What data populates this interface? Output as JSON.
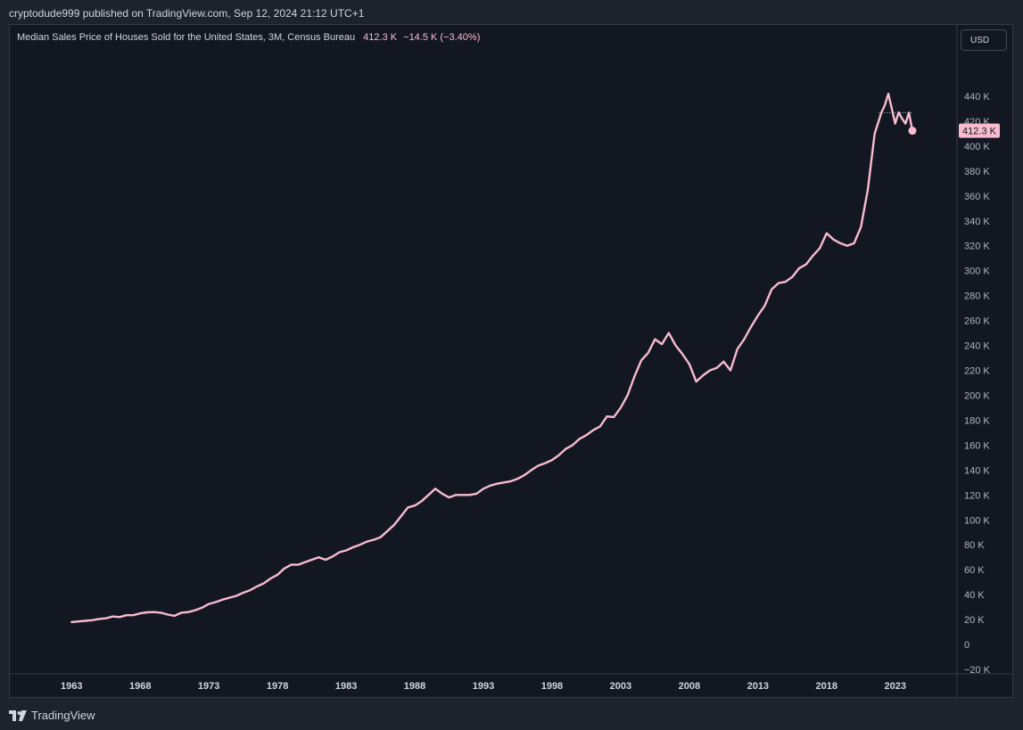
{
  "header": {
    "published_text": "cryptodude999 published on TradingView.com, Sep 12, 2024 21:12 UTC+1"
  },
  "legend": {
    "title": "Median Sales Price of Houses Sold for the United States, 3M, Census Bureau",
    "last_value": "412.3 K",
    "change": "−14.5 K (−3.40%)"
  },
  "toolbar": {
    "currency": "USD"
  },
  "footer": {
    "brand": "TradingView"
  },
  "colors": {
    "line": "#f8bbd0",
    "background": "#131722",
    "frame": "#1e222d"
  },
  "chart_data": {
    "type": "line",
    "title": "Median Sales Price of Houses Sold for the United States, 3M, Census Bureau",
    "xlabel": "",
    "ylabel": "",
    "xlim": [
      1958.5,
      2027.5
    ],
    "ylim": [
      -20000,
      460000
    ],
    "x_ticks": [
      1963,
      1968,
      1973,
      1978,
      1983,
      1988,
      1993,
      1998,
      2003,
      2008,
      2013,
      2018,
      2023
    ],
    "y_ticks": [
      -20000,
      0,
      20000,
      40000,
      60000,
      80000,
      100000,
      120000,
      140000,
      160000,
      180000,
      200000,
      220000,
      240000,
      260000,
      280000,
      300000,
      320000,
      340000,
      360000,
      380000,
      400000,
      420000,
      440000
    ],
    "y_tick_labels": [
      "−20 K",
      "0",
      "20 K",
      "40 K",
      "60 K",
      "80 K",
      "100 K",
      "120 K",
      "140 K",
      "160 K",
      "180 K",
      "200 K",
      "220 K",
      "240 K",
      "260 K",
      "280 K",
      "300 K",
      "320 K",
      "340 K",
      "360 K",
      "380 K",
      "400 K",
      "420 K",
      "440 K"
    ],
    "last_value_label": "412.3 K",
    "last_value": 412300,
    "previous_close": 426800,
    "grid": false,
    "series": [
      {
        "x": [
          1963.0,
          1963.5,
          1964.0,
          1964.5,
          1965.0,
          1965.5,
          1966.0,
          1966.5,
          1967.0,
          1967.5,
          1968.0,
          1968.5,
          1969.0,
          1969.5,
          1970.0,
          1970.5,
          1971.0,
          1971.5,
          1972.0,
          1972.5,
          1973.0,
          1973.5,
          1974.0,
          1974.5,
          1975.0,
          1975.5,
          1976.0,
          1976.5,
          1977.0,
          1977.5,
          1978.0,
          1978.5,
          1979.0,
          1979.5,
          1980.0,
          1980.5,
          1981.0,
          1981.5,
          1982.0,
          1982.5,
          1983.0,
          1983.5,
          1984.0,
          1984.5,
          1985.0,
          1985.5,
          1986.0,
          1986.5,
          1987.0,
          1987.5,
          1988.0,
          1988.5,
          1989.0,
          1989.5,
          1990.0,
          1990.5,
          1991.0,
          1991.5,
          1992.0,
          1992.5,
          1993.0,
          1993.5,
          1994.0,
          1994.5,
          1995.0,
          1995.5,
          1996.0,
          1996.5,
          1997.0,
          1997.5,
          1998.0,
          1998.5,
          1999.0,
          1999.5,
          2000.0,
          2000.5,
          2001.0,
          2001.5,
          2002.0,
          2002.5,
          2003.0,
          2003.5,
          2004.0,
          2004.5,
          2005.0,
          2005.5,
          2006.0,
          2006.5,
          2007.0,
          2007.5,
          2008.0,
          2008.5,
          2009.0,
          2009.5,
          2010.0,
          2010.5,
          2011.0,
          2011.5,
          2012.0,
          2012.5,
          2013.0,
          2013.5,
          2014.0,
          2014.5,
          2015.0,
          2015.5,
          2016.0,
          2016.5,
          2017.0,
          2017.5,
          2018.0,
          2018.5,
          2019.0,
          2019.5,
          2020.0,
          2020.5,
          2021.0,
          2021.5,
          2022.0,
          2022.25,
          2022.5,
          2022.75,
          2023.0,
          2023.25,
          2023.5,
          2023.75,
          2024.0,
          2024.25
        ],
        "y": [
          18000,
          18500,
          19000,
          19500,
          20500,
          21000,
          22500,
          22000,
          23500,
          23500,
          25000,
          25800,
          26000,
          25500,
          24000,
          23000,
          25500,
          26000,
          27500,
          29500,
          32500,
          34000,
          36000,
          37500,
          39000,
          41500,
          43500,
          46500,
          49000,
          53000,
          56000,
          61000,
          64000,
          64000,
          66000,
          68000,
          70000,
          68000,
          70500,
          74000,
          75500,
          78000,
          80000,
          82500,
          84000,
          86000,
          91000,
          96000,
          103000,
          110000,
          111500,
          115000,
          120000,
          125000,
          121000,
          118000,
          120000,
          120000,
          120000,
          121000,
          125000,
          127500,
          129000,
          130000,
          131000,
          133000,
          136000,
          140000,
          143500,
          145500,
          148000,
          152000,
          157000,
          160000,
          165000,
          168000,
          172000,
          175000,
          183000,
          182500,
          190000,
          200000,
          215000,
          228000,
          234000,
          245000,
          241000,
          250000,
          240000,
          233000,
          225000,
          211000,
          216000,
          220000,
          222000,
          227000,
          220000,
          237000,
          245000,
          255000,
          264000,
          272000,
          285000,
          290000,
          291000,
          295000,
          302000,
          305000,
          312000,
          318000,
          330000,
          325000,
          322000,
          320000,
          322000,
          335000,
          365000,
          410000,
          427000,
          433000,
          442000,
          430000,
          418000,
          427000,
          422000,
          418000,
          426800,
          412300
        ]
      }
    ]
  }
}
